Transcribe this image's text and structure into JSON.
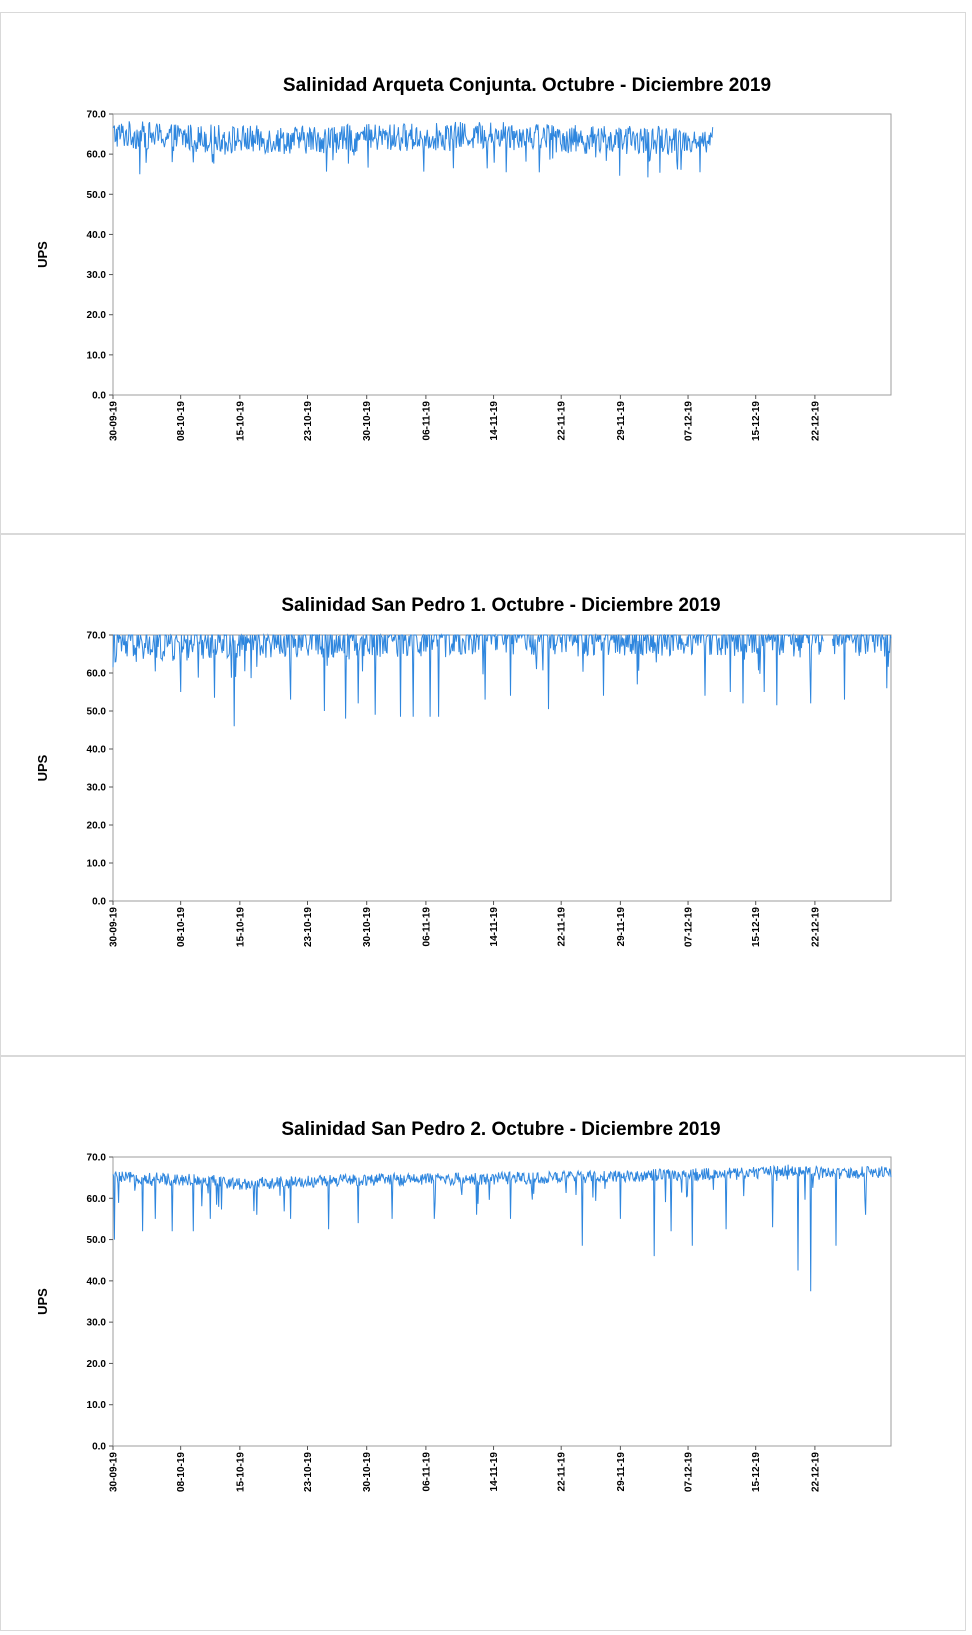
{
  "accent_color": "#2e86de",
  "chart_data": [
    {
      "type": "line",
      "title": "Salinidad Arqueta Conjunta. Octubre - Diciembre 2019",
      "xlabel": "",
      "ylabel": "UPS",
      "ylim": [
        0,
        70
      ],
      "yticks": [
        "0.0",
        "10.0",
        "20.0",
        "30.0",
        "40.0",
        "50.0",
        "60.0",
        "70.0"
      ],
      "xlim": [
        "30-09-19",
        "31-12-19"
      ],
      "xticks": [
        "30-09-19",
        "08-10-19",
        "15-10-19",
        "23-10-19",
        "30-10-19",
        "06-11-19",
        "14-11-19",
        "22-11-19",
        "29-11-19",
        "07-12-19",
        "15-12-19",
        "22-12-19"
      ],
      "series_color": "#2e86de",
      "data_end": "10-12-19",
      "sampling": "every 2 hours",
      "base_level": [
        [
          0,
          65
        ],
        [
          10,
          64
        ],
        [
          20,
          63.5
        ],
        [
          30,
          64
        ],
        [
          40,
          64.5
        ],
        [
          48,
          65
        ],
        [
          56,
          63.5
        ],
        [
          70,
          63.5
        ]
      ],
      "band_width": 3.5,
      "dips": [
        [
          3.2,
          55
        ],
        [
          46.5,
          55.5
        ],
        [
          26,
          58.5
        ],
        [
          63.5,
          58.5
        ]
      ],
      "grid": false,
      "legend": "none"
    },
    {
      "type": "line",
      "title": "Salinidad  San Pedro 1. Octubre - Diciembre 2019",
      "xlabel": "",
      "ylabel": "UPS",
      "ylim": [
        0,
        70
      ],
      "yticks": [
        "0.0",
        "10.0",
        "20.0",
        "30.0",
        "40.0",
        "50.0",
        "60.0",
        "70.0"
      ],
      "xlim": [
        "30-09-19",
        "31-12-19"
      ],
      "xticks": [
        "30-09-19",
        "08-10-19",
        "15-10-19",
        "23-10-19",
        "30-10-19",
        "06-11-19",
        "14-11-19",
        "22-11-19",
        "29-11-19",
        "07-12-19",
        "15-12-19",
        "22-12-19"
      ],
      "series_color": "#2e86de",
      "data_end": "31-12-19",
      "sampling": "every 2 hours",
      "base_level": [
        [
          0,
          67.5
        ],
        [
          10,
          68
        ],
        [
          12,
          69
        ],
        [
          36,
          69
        ],
        [
          38,
          68.5
        ],
        [
          40,
          70
        ],
        [
          60,
          69.5
        ],
        [
          78,
          69.5
        ],
        [
          92,
          70
        ]
      ],
      "band_width": 5,
      "gaps": [
        [
          84,
          85
        ]
      ],
      "dips": [
        [
          14.3,
          46
        ],
        [
          27.5,
          48
        ],
        [
          31,
          49
        ],
        [
          34,
          48.5
        ],
        [
          35.5,
          48.5
        ],
        [
          37.5,
          48.5
        ],
        [
          38.5,
          48.5
        ],
        [
          51.5,
          50.5
        ],
        [
          74.5,
          52
        ],
        [
          78.5,
          51.5
        ],
        [
          82.5,
          52
        ],
        [
          86.5,
          53
        ],
        [
          91.5,
          56
        ],
        [
          8,
          55
        ],
        [
          12,
          53.5
        ],
        [
          21,
          53
        ],
        [
          25,
          50
        ],
        [
          29,
          52
        ],
        [
          44,
          53
        ],
        [
          47,
          54
        ],
        [
          58,
          54
        ],
        [
          62,
          57
        ],
        [
          70,
          54
        ],
        [
          73,
          55
        ],
        [
          77,
          55
        ]
      ],
      "grid": false,
      "legend": "none"
    },
    {
      "type": "line",
      "title": "Salinidad  San Pedro 2. Octubre - Diciembre 2019",
      "xlabel": "",
      "ylabel": "UPS",
      "ylim": [
        0,
        70
      ],
      "yticks": [
        "0.0",
        "10.0",
        "20.0",
        "30.0",
        "40.0",
        "50.0",
        "60.0",
        "70.0"
      ],
      "xlim": [
        "30-09-19",
        "31-12-19"
      ],
      "xticks": [
        "30-09-19",
        "08-10-19",
        "15-10-19",
        "23-10-19",
        "30-10-19",
        "06-11-19",
        "14-11-19",
        "22-11-19",
        "29-11-19",
        "07-12-19",
        "15-12-19",
        "22-12-19"
      ],
      "series_color": "#2e86de",
      "data_end": "31-12-19",
      "sampling": "every 2 hours",
      "base_level": [
        [
          0,
          65
        ],
        [
          10,
          64.5
        ],
        [
          15,
          63.5
        ],
        [
          30,
          64.5
        ],
        [
          52,
          65
        ],
        [
          62,
          65.5
        ],
        [
          75,
          66
        ],
        [
          80,
          67
        ],
        [
          85,
          66
        ],
        [
          92,
          66.5
        ]
      ],
      "band_width": 1.5,
      "dips": [
        [
          0.2,
          50
        ],
        [
          3.5,
          52
        ],
        [
          7,
          52
        ],
        [
          9.5,
          52
        ],
        [
          25.5,
          52.5
        ],
        [
          55.5,
          48.5
        ],
        [
          64,
          46
        ],
        [
          68.5,
          48.5
        ],
        [
          72.5,
          52.5
        ],
        [
          81,
          42.5
        ],
        [
          82.5,
          37.5
        ],
        [
          85.5,
          48.5
        ],
        [
          89,
          56
        ],
        [
          5,
          55
        ],
        [
          11.5,
          55
        ],
        [
          17,
          56
        ],
        [
          21,
          55
        ],
        [
          29,
          54
        ],
        [
          33,
          55
        ],
        [
          38,
          55
        ],
        [
          43,
          56
        ],
        [
          47,
          55
        ],
        [
          60,
          55
        ],
        [
          66,
          52
        ],
        [
          78,
          53
        ]
      ],
      "grid": false,
      "legend": "none"
    }
  ]
}
